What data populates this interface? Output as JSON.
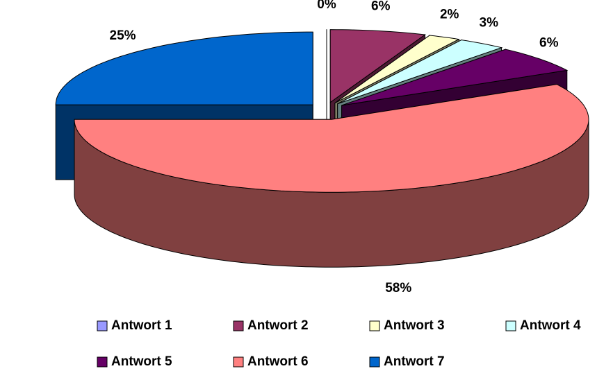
{
  "chart_data": {
    "type": "pie",
    "three_d": true,
    "exploded": true,
    "categories": [
      "Antwort 1",
      "Antwort 2",
      "Antwort 3",
      "Antwort 4",
      "Antwort 5",
      "Antwort 6",
      "Antwort 7"
    ],
    "values": [
      0,
      6,
      2,
      3,
      6,
      58,
      25
    ],
    "value_labels": [
      "0%",
      "6%",
      "2%",
      "3%",
      "6%",
      "58%",
      "25%"
    ],
    "colors": [
      "#9999ff",
      "#993366",
      "#ffffcc",
      "#ccffff",
      "#660066",
      "#ff8080",
      "#0066cc"
    ],
    "legend": "bottom"
  }
}
